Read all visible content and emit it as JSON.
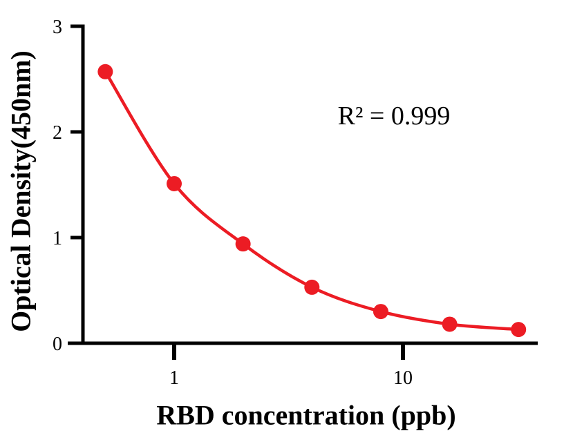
{
  "chart_data": {
    "type": "scatter",
    "xlabel": "RBD concentration (ppb)",
    "ylabel": "Optical Density(450nm)",
    "annotation": "R² = 0.999",
    "xscale": "log",
    "x": [
      0.5,
      1,
      2,
      4,
      8,
      16,
      32
    ],
    "y": [
      2.57,
      1.51,
      0.94,
      0.53,
      0.3,
      0.18,
      0.13
    ],
    "xticks": [
      1,
      10
    ],
    "yticks": [
      0,
      1,
      2,
      3
    ],
    "xlim": [
      0.4,
      40
    ],
    "ylim": [
      0,
      3
    ],
    "grid": false,
    "legend": false,
    "marker_color": "#ec1c24",
    "line_color": "#ec1c24",
    "axis_color": "#000000",
    "background_color": "#ffffff"
  }
}
